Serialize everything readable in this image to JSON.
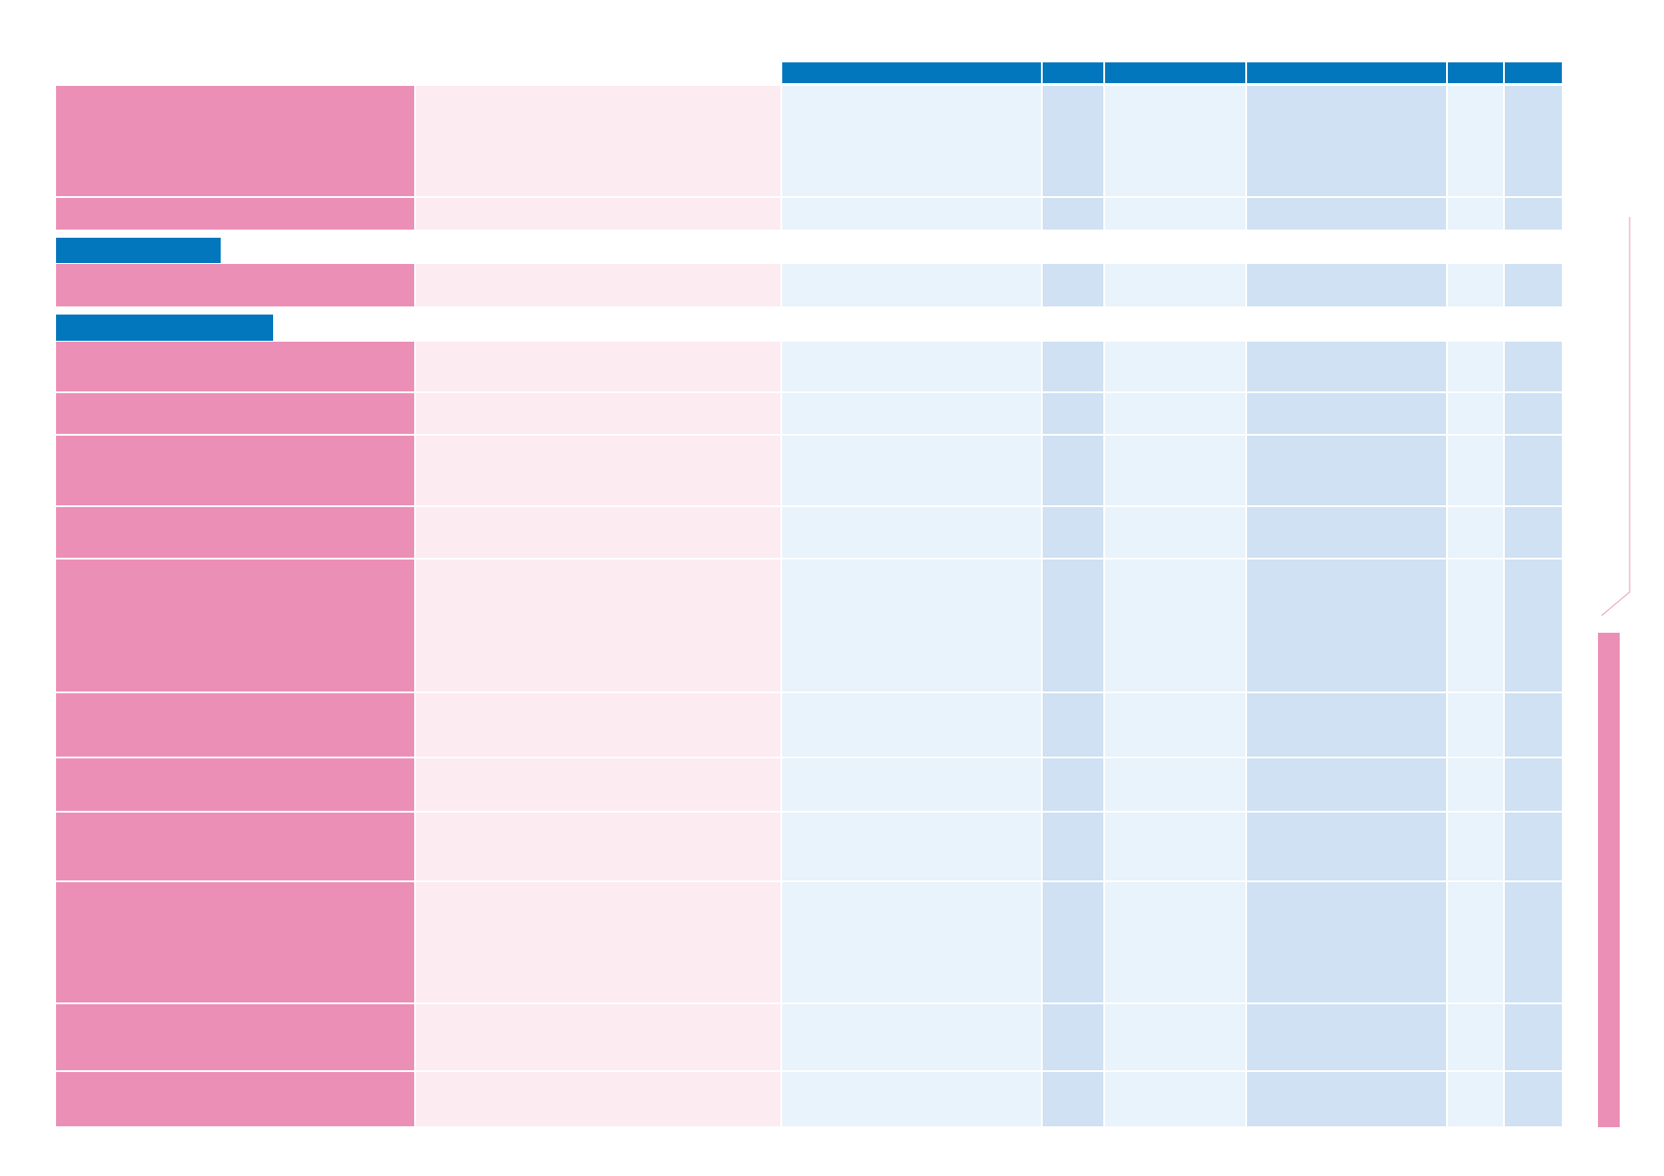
{
  "colors": {
    "header_blue": "#0277bd",
    "row_pink": "#ec8fb7",
    "row_pink_light": "#fcebf1",
    "cell_blue_light": "#e8f3fb",
    "cell_blue_mid": "#cfe1f3",
    "side_line": "#e7a9c3"
  },
  "table": {
    "column_headers": [
      "",
      "",
      "",
      "",
      "",
      ""
    ],
    "sections": [
      "",
      ""
    ],
    "rows": [
      {
        "label": "",
        "description": "",
        "cells": [
          "",
          "",
          "",
          "",
          "",
          ""
        ]
      },
      {
        "label": "",
        "description": "",
        "cells": [
          "",
          "",
          "",
          "",
          "",
          ""
        ]
      },
      {
        "label": "",
        "description": "",
        "cells": [
          "",
          "",
          "",
          "",
          "",
          ""
        ]
      },
      {
        "label": "",
        "description": "",
        "cells": [
          "",
          "",
          "",
          "",
          "",
          ""
        ]
      },
      {
        "label": "",
        "description": "",
        "cells": [
          "",
          "",
          "",
          "",
          "",
          ""
        ]
      },
      {
        "label": "",
        "description": "",
        "cells": [
          "",
          "",
          "",
          "",
          "",
          ""
        ]
      },
      {
        "label": "",
        "description": "",
        "cells": [
          "",
          "",
          "",
          "",
          "",
          ""
        ]
      },
      {
        "label": "",
        "description": "",
        "cells": [
          "",
          "",
          "",
          "",
          "",
          ""
        ]
      },
      {
        "label": "",
        "description": "",
        "cells": [
          "",
          "",
          "",
          "",
          "",
          ""
        ]
      },
      {
        "label": "",
        "description": "",
        "cells": [
          "",
          "",
          "",
          "",
          "",
          ""
        ]
      },
      {
        "label": "",
        "description": "",
        "cells": [
          "",
          "",
          "",
          "",
          "",
          ""
        ]
      },
      {
        "label": "",
        "description": "",
        "cells": [
          "",
          "",
          "",
          "",
          "",
          ""
        ]
      },
      {
        "label": "",
        "description": "",
        "cells": [
          "",
          "",
          "",
          "",
          "",
          ""
        ]
      },
      {
        "label": "",
        "description": "",
        "cells": [
          "",
          "",
          "",
          "",
          "",
          ""
        ]
      }
    ]
  }
}
